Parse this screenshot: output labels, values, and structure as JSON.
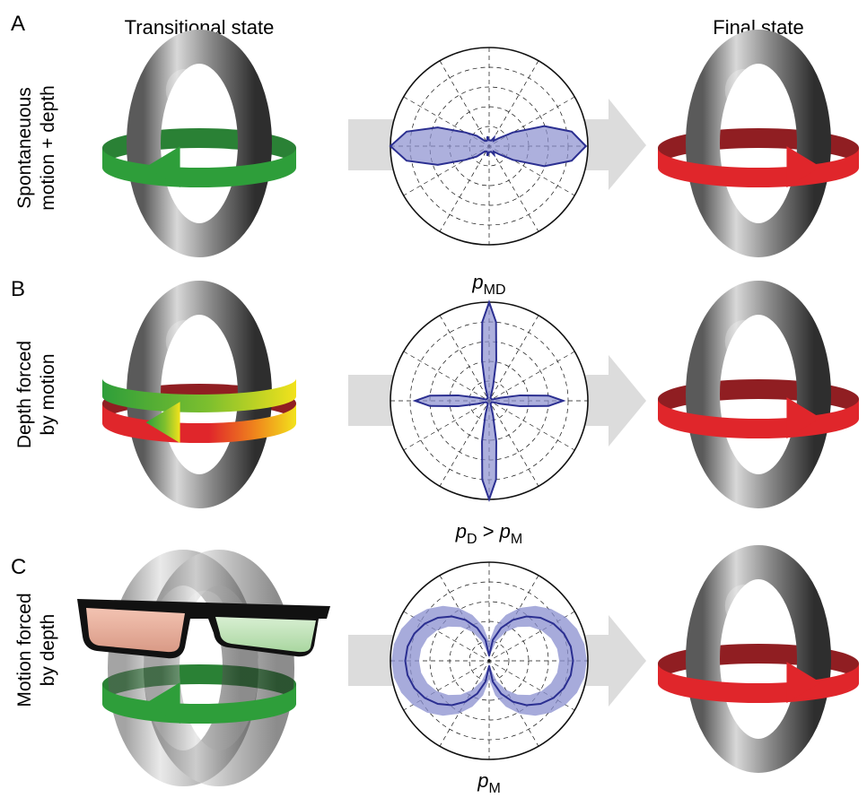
{
  "columns": {
    "left_title": "Transitional state",
    "right_title": "Final state"
  },
  "panels": [
    {
      "letter": "A",
      "row_label_line1": "Spontaneuous",
      "row_label_line2": "motion + depth",
      "polar_label": {
        "p": "p",
        "sub": "MD",
        "rest": ""
      },
      "left_ring": "green",
      "left_arrow_dir": "left",
      "has_glasses": false,
      "polar_shape": "horizontal"
    },
    {
      "letter": "B",
      "row_label_line1": "Depth forced",
      "row_label_line2": "by motion",
      "polar_label": {
        "p": "p",
        "sub": "D",
        "rest": " > ",
        "p2": "p",
        "sub2": "M"
      },
      "left_ring": "red-yellow",
      "left_arrow_dir": "left",
      "has_glasses": false,
      "polar_shape": "cross"
    },
    {
      "letter": "C",
      "row_label_line1": "Motion forced",
      "row_label_line2": "by depth",
      "polar_label": {
        "p": "p",
        "sub": "M",
        "rest": ""
      },
      "left_ring": "green",
      "left_arrow_dir": "left",
      "has_glasses": true,
      "polar_shape": "figure-eight"
    }
  ],
  "colors": {
    "green": "#2e9e3a",
    "green_dark": "#1f7a2a",
    "red": "#e0262b",
    "red_dark": "#8a1216",
    "yellow": "#f2e21c",
    "polar_line": "#2b2f91",
    "polar_fill": "#8a8fcf",
    "flow_arrow": "#d9d9d9",
    "torus_light": "#e8e8e8",
    "torus_dark": "#4a4a4a"
  }
}
